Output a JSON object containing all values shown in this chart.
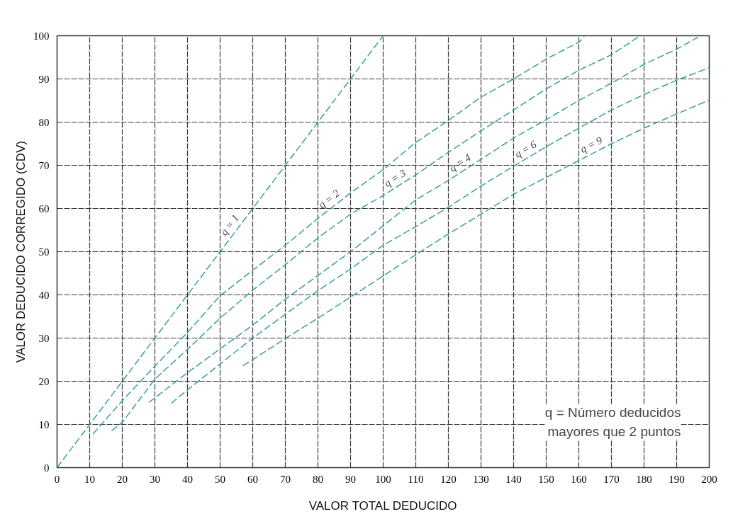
{
  "chart_data": {
    "type": "line",
    "xlabel": "VALOR TOTAL DEDUCIDO",
    "ylabel": "VALOR DEDUCIDO CORREGIDO (CDV)",
    "xlim": [
      0,
      200
    ],
    "ylim": [
      0,
      100
    ],
    "xticks": [
      0,
      10,
      20,
      30,
      40,
      50,
      60,
      70,
      80,
      90,
      100,
      110,
      120,
      130,
      140,
      150,
      160,
      170,
      180,
      190,
      200
    ],
    "yticks": [
      0,
      10,
      20,
      30,
      40,
      50,
      60,
      70,
      80,
      90,
      100
    ],
    "grid": true,
    "line_style": "dashed",
    "marker": "none",
    "annotations": [
      "q = Número deducidos mayores que 2 puntos"
    ],
    "series": [
      {
        "name": "q = 1",
        "color": "#3a9e9e",
        "x": [
          0,
          100
        ],
        "values": [
          0,
          100
        ]
      },
      {
        "name": "q = 2",
        "color": "#3a9e9e",
        "x": [
          11,
          20,
          30,
          40,
          50,
          60,
          70,
          80,
          90,
          100,
          110,
          120,
          130,
          140,
          150,
          160,
          161.7
        ],
        "values": [
          7.8,
          15.5,
          23.5,
          31.3,
          39.8,
          45.7,
          51.5,
          57.7,
          63.6,
          69,
          75.3,
          80.4,
          85.8,
          90,
          94.6,
          98.5,
          99.7
        ]
      },
      {
        "name": "q = 3",
        "color": "#3a9e9e",
        "x": [
          16.7,
          20,
          30,
          40,
          50,
          60,
          70,
          80,
          90,
          100,
          110,
          120,
          130,
          140,
          150,
          160,
          170,
          178.4
        ],
        "values": [
          8.5,
          10.5,
          20.5,
          27.4,
          34.6,
          41.1,
          47,
          53.2,
          58.7,
          63,
          67.8,
          73,
          78,
          82.8,
          87.7,
          92,
          95.6,
          99.8
        ]
      },
      {
        "name": "q = 4",
        "color": "#3a9e9e",
        "x": [
          28.2,
          40,
          50,
          60,
          70,
          80,
          90,
          100,
          110,
          120,
          130,
          140,
          150,
          160,
          170,
          180,
          190,
          196.6
        ],
        "values": [
          15.1,
          22,
          27.5,
          33,
          39,
          44.5,
          50,
          56,
          62,
          66.5,
          71.4,
          76.3,
          80.6,
          85,
          89,
          93.4,
          96.9,
          99.7
        ]
      },
      {
        "name": "q = 6",
        "color": "#3a9e9e",
        "x": [
          35,
          40,
          50,
          60,
          70,
          80,
          90,
          100,
          110,
          120,
          130,
          140,
          150,
          160,
          170,
          180,
          190,
          200
        ],
        "values": [
          14.9,
          18,
          24,
          30,
          35.5,
          41,
          46,
          51.5,
          55.8,
          60.3,
          65.2,
          69.8,
          74.3,
          78.6,
          82.8,
          86.4,
          89.7,
          92.6
        ]
      },
      {
        "name": "q = 9",
        "color": "#3a9e9e",
        "x": [
          57,
          60,
          70,
          80,
          90,
          100,
          110,
          120,
          130,
          140,
          150,
          160,
          170,
          180,
          190,
          200
        ],
        "values": [
          23.6,
          25,
          29.9,
          34.6,
          39.5,
          44.4,
          49.3,
          54.1,
          58.7,
          63.3,
          67.2,
          71.1,
          75,
          78.6,
          81.9,
          85.1
        ]
      }
    ]
  }
}
